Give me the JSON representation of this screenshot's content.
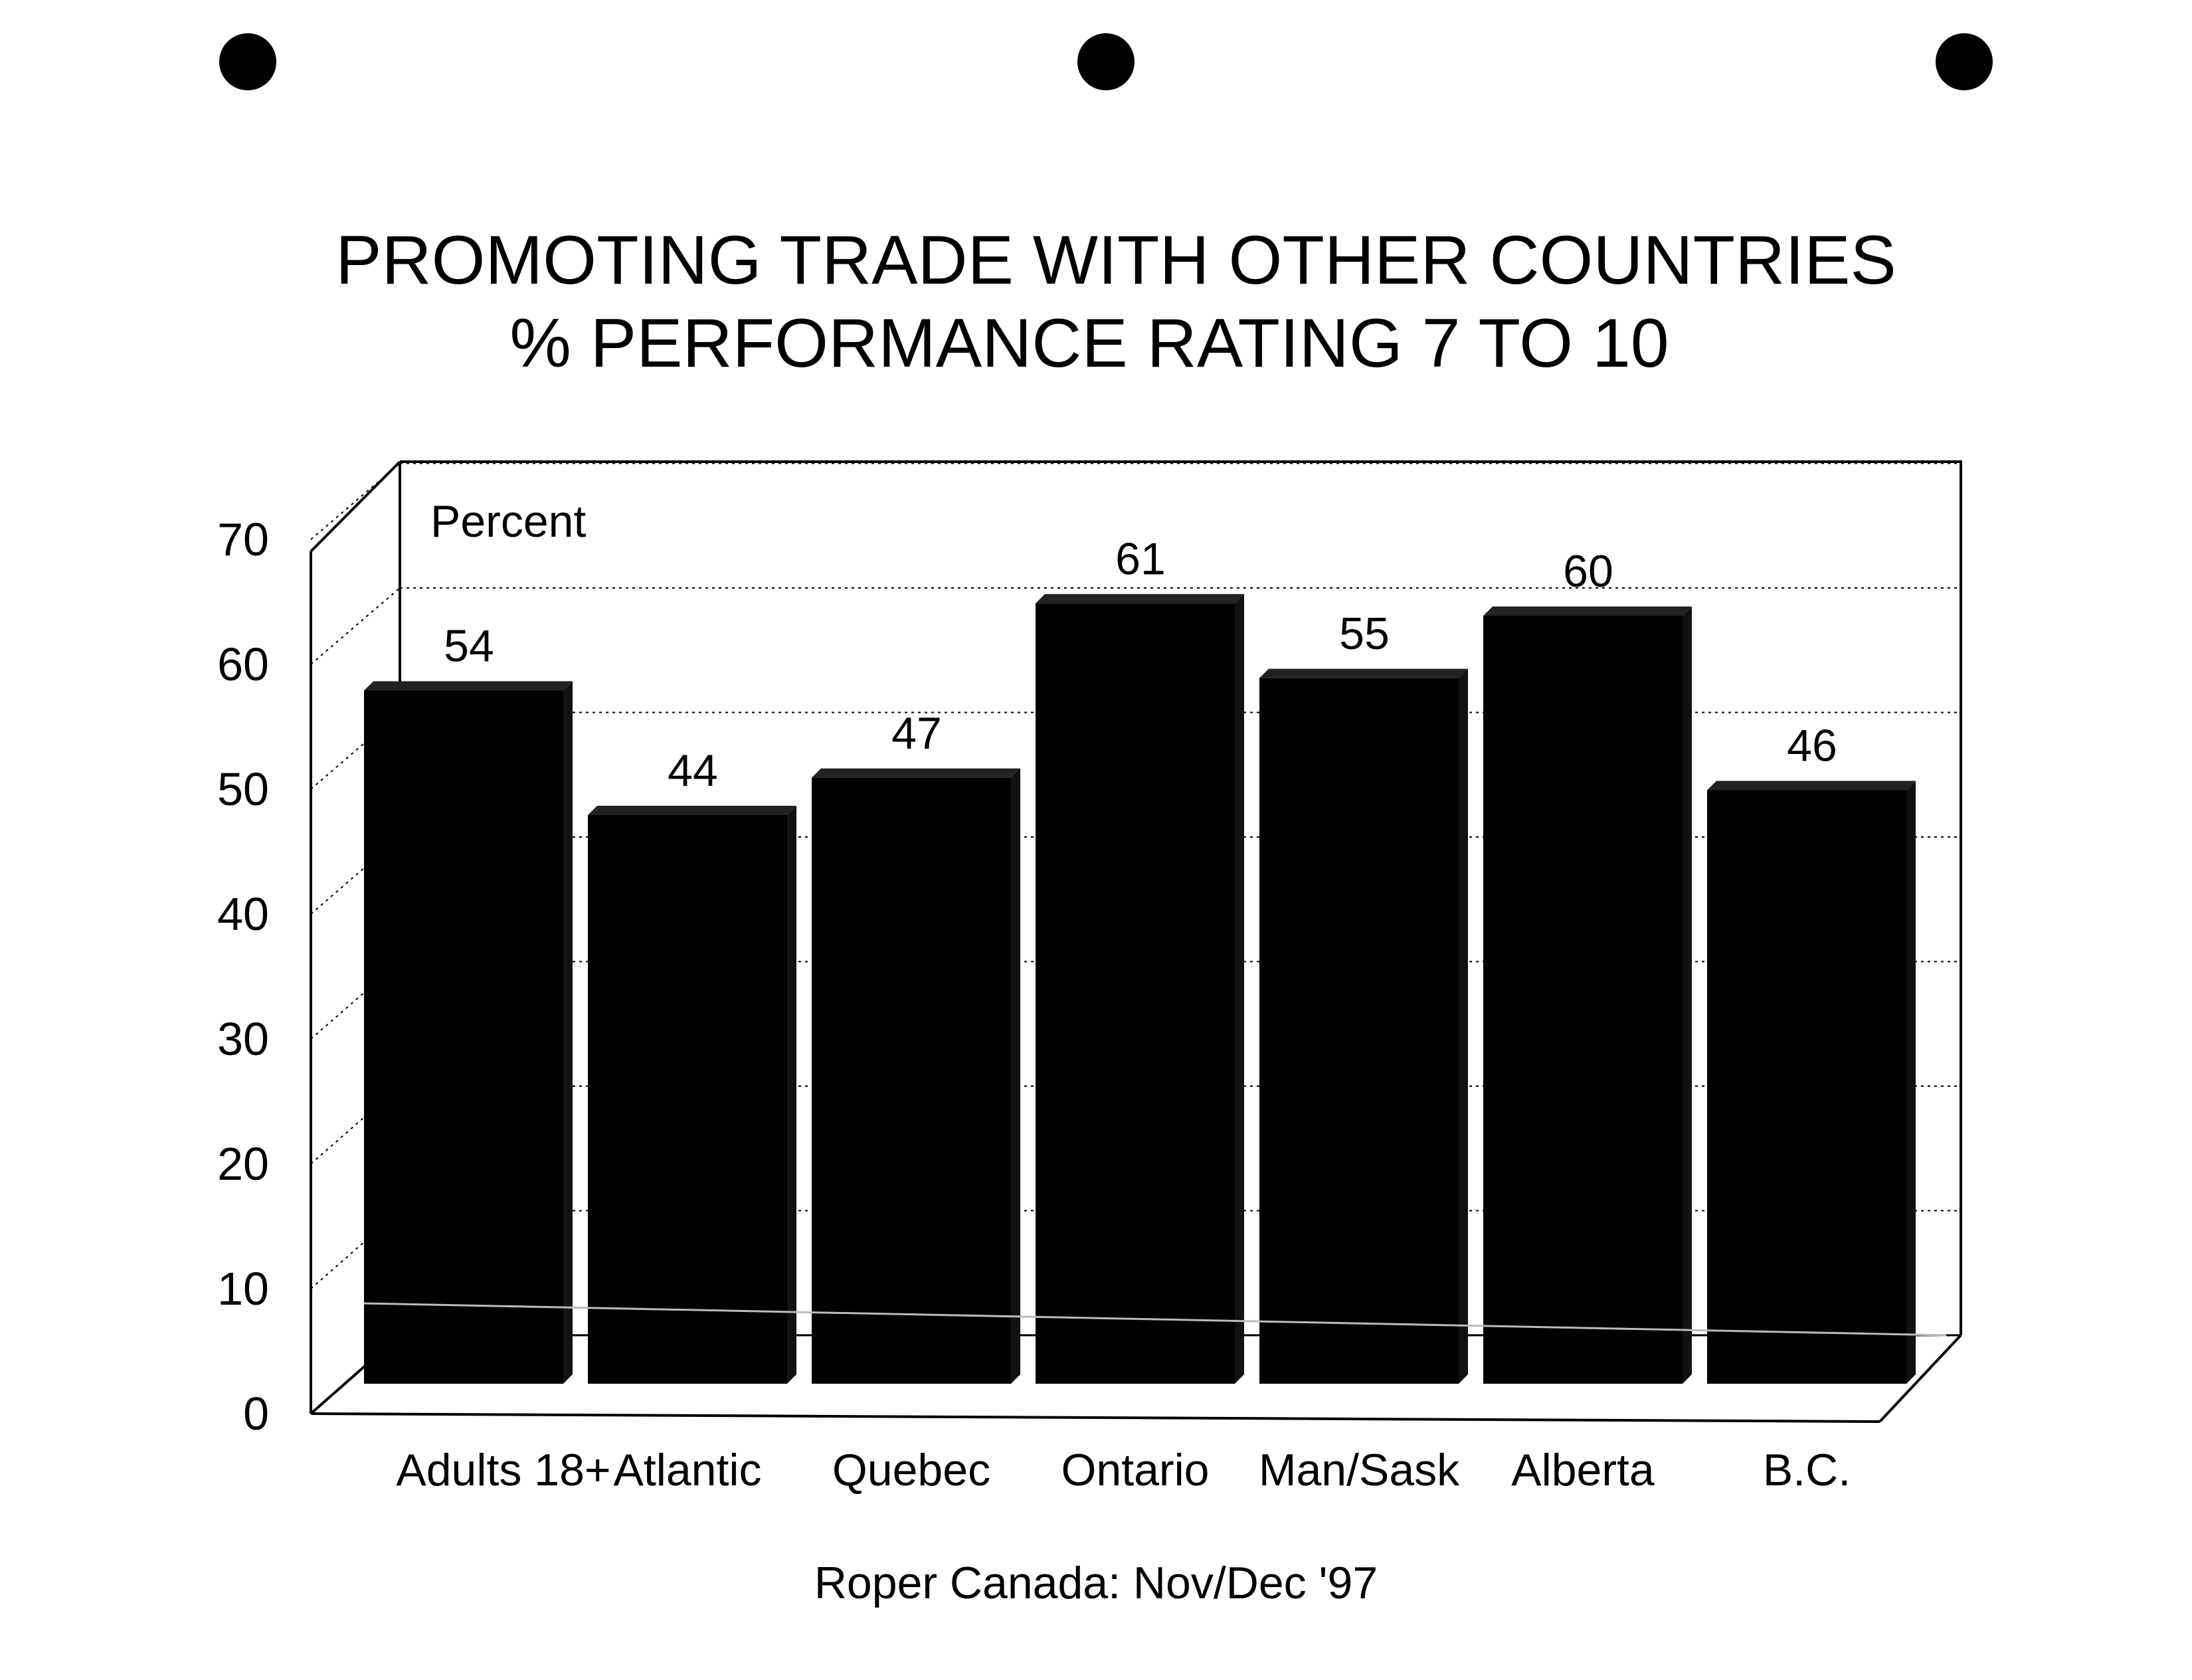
{
  "chart_data": {
    "type": "bar",
    "title": "PROMOTING TRADE WITH OTHER COUNTRIES",
    "subtitle": "% PERFORMANCE RATING  7 TO 10",
    "ylabel": "Percent",
    "xlabel": "",
    "ylim": [
      0,
      70
    ],
    "yticks": [
      0,
      10,
      20,
      30,
      40,
      50,
      60,
      70
    ],
    "grid": true,
    "categories": [
      "Adults 18+",
      "Atlantic",
      "Quebec",
      "Ontario",
      "Man/Sask",
      "Alberta",
      "B.C."
    ],
    "values": [
      54,
      44,
      47,
      61,
      55,
      60,
      46
    ],
    "value_labels": [
      "54",
      "44",
      "47",
      "61",
      "55",
      "60",
      "46"
    ],
    "bar_color": "#000000",
    "source": "Roper Canada: Nov/Dec '97"
  }
}
